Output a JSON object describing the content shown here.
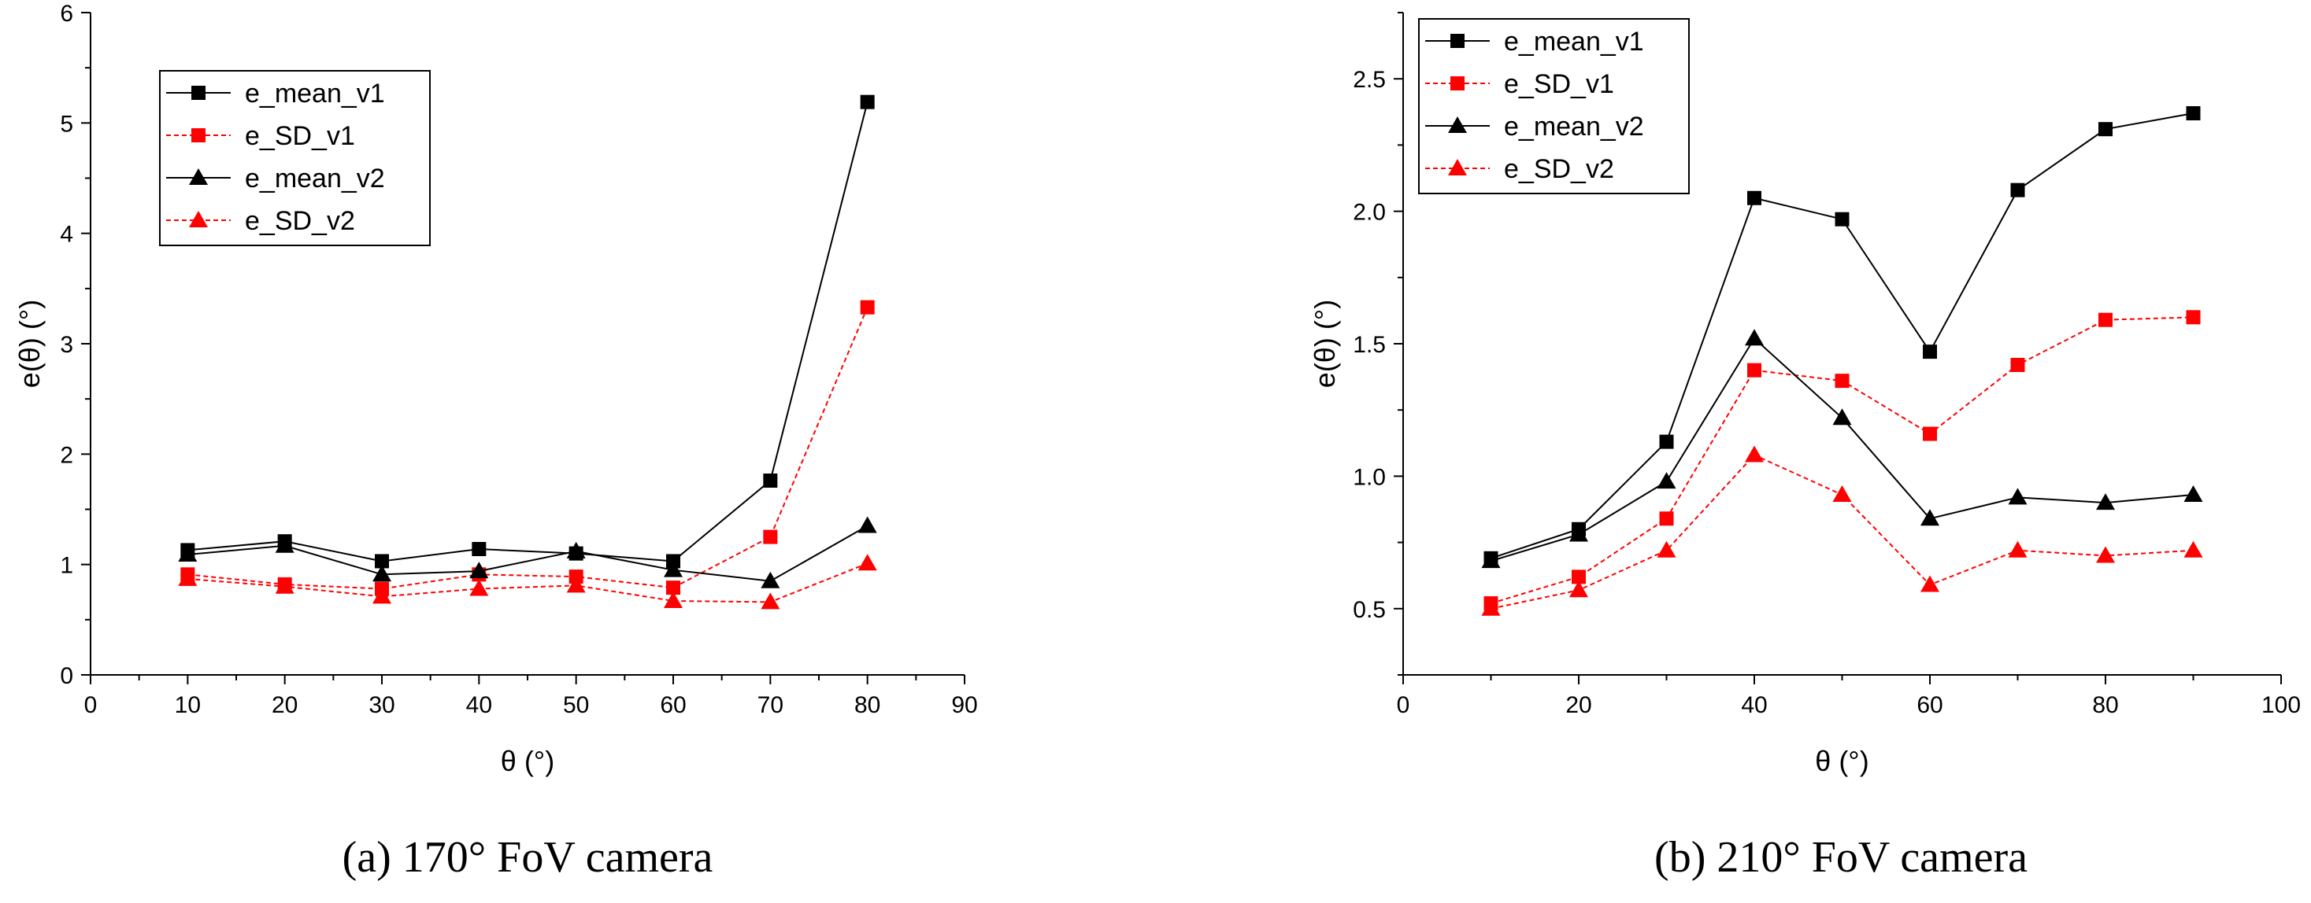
{
  "chart_data": [
    {
      "type": "line",
      "title": "",
      "caption": "(a)  170° FoV camera",
      "xlabel": "θ (°)",
      "ylabel": "e(θ) (°)",
      "xlim": [
        0,
        90
      ],
      "ylim": [
        0,
        6
      ],
      "xticks": [
        0,
        10,
        20,
        30,
        40,
        50,
        60,
        70,
        80,
        90
      ],
      "yticks": [
        0,
        1,
        2,
        3,
        4,
        5,
        6
      ],
      "ytick_labels": [
        "0",
        "1",
        "2",
        "3",
        "4",
        "5",
        "6"
      ],
      "legend_position": "upper-left",
      "x": [
        10,
        20,
        30,
        40,
        50,
        60,
        70,
        80
      ],
      "series": [
        {
          "name": "e_mean_v1",
          "color": "#000000",
          "marker": "square",
          "dashed": false,
          "values": [
            1.13,
            1.21,
            1.03,
            1.14,
            1.1,
            1.03,
            1.76,
            5.19
          ]
        },
        {
          "name": "e_SD_v1",
          "color": "#ff0000",
          "marker": "square",
          "dashed": true,
          "values": [
            0.91,
            0.82,
            0.78,
            0.91,
            0.89,
            0.79,
            1.25,
            3.33
          ]
        },
        {
          "name": "e_mean_v2",
          "color": "#000000",
          "marker": "triangle",
          "dashed": false,
          "values": [
            1.09,
            1.17,
            0.91,
            0.94,
            1.12,
            0.95,
            0.85,
            1.35
          ]
        },
        {
          "name": "e_SD_v2",
          "color": "#ff0000",
          "marker": "triangle",
          "dashed": true,
          "values": [
            0.87,
            0.8,
            0.71,
            0.78,
            0.81,
            0.67,
            0.66,
            1.01
          ]
        }
      ]
    },
    {
      "type": "line",
      "title": "",
      "caption": "(b)  210° FoV camera",
      "xlabel": "θ (°)",
      "ylabel": "e(θ) (°)",
      "xlim": [
        0,
        100
      ],
      "ylim": [
        0.25,
        2.75
      ],
      "xticks": [
        0,
        20,
        40,
        60,
        80,
        100
      ],
      "yticks": [
        0.5,
        1.0,
        1.5,
        2.0,
        2.5
      ],
      "ytick_labels": [
        "0.5",
        "1.0",
        "1.5",
        "2.0",
        "2.5"
      ],
      "legend_position": "upper-left",
      "x": [
        10,
        20,
        30,
        40,
        50,
        60,
        70,
        80,
        90
      ],
      "series": [
        {
          "name": "e_mean_v1",
          "color": "#000000",
          "marker": "square",
          "dashed": false,
          "values": [
            0.69,
            0.8,
            1.13,
            2.05,
            1.97,
            1.47,
            2.08,
            2.31,
            2.37
          ]
        },
        {
          "name": "e_SD_v1",
          "color": "#ff0000",
          "marker": "square",
          "dashed": true,
          "values": [
            0.52,
            0.62,
            0.84,
            1.4,
            1.36,
            1.16,
            1.42,
            1.59,
            1.6
          ]
        },
        {
          "name": "e_mean_v2",
          "color": "#000000",
          "marker": "triangle",
          "dashed": false,
          "values": [
            0.68,
            0.78,
            0.98,
            1.52,
            1.22,
            0.84,
            0.92,
            0.9,
            0.93
          ]
        },
        {
          "name": "e_SD_v2",
          "color": "#ff0000",
          "marker": "triangle",
          "dashed": true,
          "values": [
            0.5,
            0.57,
            0.72,
            1.08,
            0.93,
            0.59,
            0.72,
            0.7,
            0.72
          ]
        }
      ]
    }
  ]
}
